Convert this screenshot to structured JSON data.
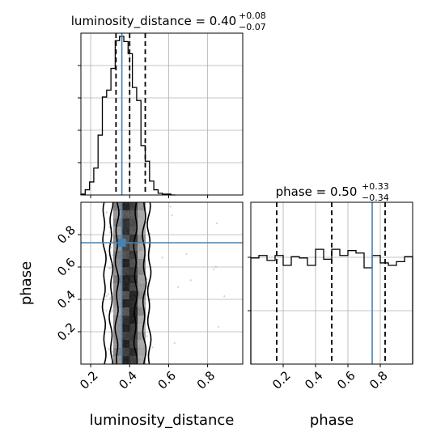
{
  "chart_data": {
    "type": "corner",
    "parameters": [
      "luminosity_distance",
      "phase"
    ],
    "truth": {
      "luminosity_distance": 0.36,
      "phase": 0.75
    },
    "colors": {
      "truth": "#4682b4",
      "hist": "#000000",
      "grid": "#b0b0b0",
      "points": "#9a9a9a"
    },
    "grid": true,
    "panels": [
      {
        "id": "hist-luminosity",
        "type": "histogram",
        "param": "luminosity_distance",
        "title": {
          "main": "luminosity_distance = 0.40",
          "sup": "+0.08",
          "sub": "−0.07"
        },
        "xlim": [
          0.15,
          0.98
        ],
        "bin_edges": [
          0.15,
          0.172,
          0.194,
          0.216,
          0.238,
          0.26,
          0.282,
          0.304,
          0.326,
          0.348,
          0.37,
          0.392,
          0.414,
          0.436,
          0.458,
          0.48,
          0.502,
          0.524,
          0.546,
          0.568,
          0.59,
          0.612,
          0.634
        ],
        "counts": [
          1,
          6,
          15,
          31,
          69,
          113,
          121,
          146,
          178,
          183,
          177,
          163,
          124,
          109,
          57,
          39,
          16,
          6,
          2,
          1,
          1,
          0
        ],
        "quantiles": [
          0.33,
          0.4,
          0.48
        ]
      },
      {
        "id": "hist-phase",
        "type": "histogram",
        "param": "phase",
        "title": {
          "main": "phase = 0.50",
          "sup": "+0.33",
          "sub": "−0.34"
        },
        "xlim": [
          0.0,
          1.0
        ],
        "xticks": [
          "0.2",
          "0.4",
          "0.6",
          "0.8"
        ],
        "bin_edges": [
          0.0,
          0.05,
          0.1,
          0.15,
          0.2,
          0.25,
          0.3,
          0.35,
          0.4,
          0.45,
          0.5,
          0.55,
          0.6,
          0.65,
          0.7,
          0.75,
          0.8,
          0.85,
          0.9,
          0.95,
          1.0
        ],
        "counts": [
          86,
          88,
          84,
          88,
          80,
          87,
          86,
          80,
          93,
          85,
          93,
          88,
          92,
          90,
          78,
          88,
          82,
          80,
          83,
          87
        ],
        "quantiles": [
          0.16,
          0.5,
          0.83
        ]
      },
      {
        "id": "joint-luminosity-phase",
        "type": "2d-density",
        "x": "luminosity_distance",
        "y": "phase",
        "xlim": [
          0.15,
          0.98
        ],
        "ylim": [
          0.0,
          1.0
        ],
        "xticks": [
          "0.2",
          "0.4",
          "0.6",
          "0.8"
        ],
        "yticks": [
          "0.2",
          "0.4",
          "0.6",
          "0.8"
        ],
        "contour_bounds": [
          [
            0.27,
            0.5
          ],
          [
            0.305,
            0.475
          ],
          [
            0.335,
            0.43
          ]
        ]
      }
    ],
    "xlabels": [
      "luminosity_distance",
      "phase"
    ],
    "ylabel": "phase"
  }
}
